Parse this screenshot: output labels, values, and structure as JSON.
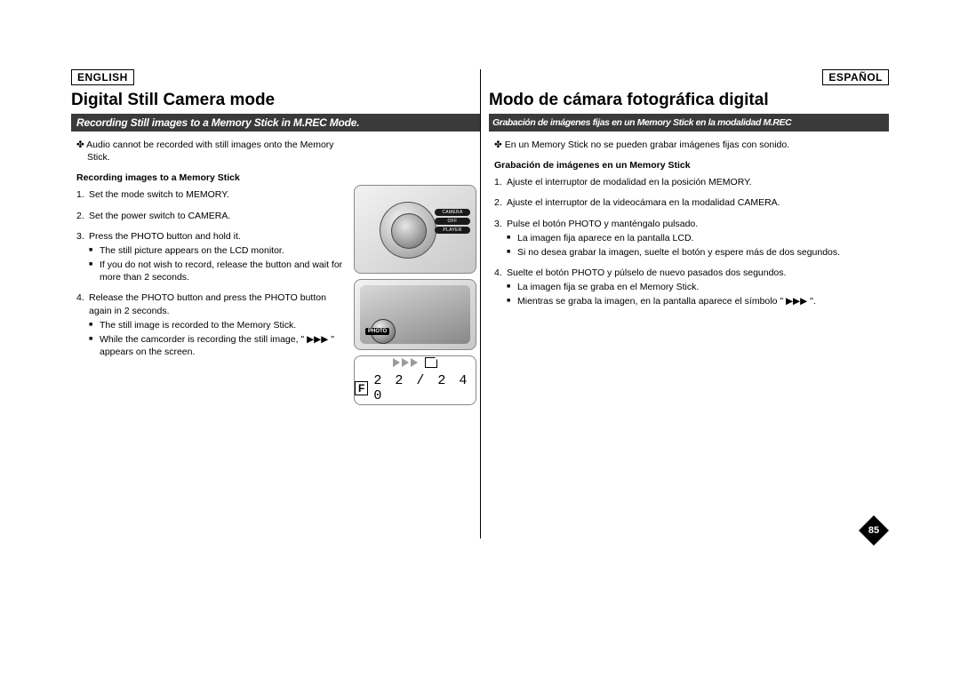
{
  "lang": {
    "left": "ENGLISH",
    "right": "ESPAÑOL"
  },
  "title": {
    "left": "Digital Still Camera mode",
    "right": "Modo de cámara fotográfica digital"
  },
  "banner": {
    "left": "Recording Still images to a Memory Stick in M.REC Mode.",
    "right": "Grabación de imágenes fijas en un Memory Stick en la modalidad M.REC"
  },
  "note": {
    "left": "Audio cannot be recorded with still images onto the Memory Stick.",
    "right": "En un Memory Stick no se pueden grabar imágenes fijas con sonido."
  },
  "subhead": {
    "left": "Recording images to a Memory Stick",
    "right": "Grabación de imágenes en un Memory Stick"
  },
  "stepsLeft": [
    {
      "n": "1.",
      "t": "Set the mode switch to MEMORY."
    },
    {
      "n": "2.",
      "t": "Set the power switch to CAMERA."
    },
    {
      "n": "3.",
      "t": "Press the PHOTO button and hold it.",
      "b": [
        "The still picture appears on the LCD monitor.",
        "If you do not wish to record, release the button and wait for more than 2 seconds."
      ]
    },
    {
      "n": "4.",
      "t": "Release the PHOTO button and press the PHOTO button again in 2 seconds.",
      "b": [
        "The still image is recorded to the Memory Stick.",
        "While the camcorder is recording the still image, \" ▶▶▶ \" appears on the screen."
      ]
    }
  ],
  "stepsRight": [
    {
      "n": "1.",
      "t": "Ajuste el interruptor de modalidad en la posición MEMORY."
    },
    {
      "n": "2.",
      "t": "Ajuste el interruptor de la videocámara en la modalidad CAMERA."
    },
    {
      "n": "3.",
      "t": "Pulse el botón PHOTO y manténgalo pulsado.",
      "b": [
        "La imagen fija aparece en la pantalla LCD.",
        "Si no desea grabar la imagen, suelte el botón y espere más de dos segundos."
      ]
    },
    {
      "n": "4.",
      "t": "Suelte el botón PHOTO y púlselo de nuevo pasados dos segundos.",
      "b": [
        "La imagen fija se graba en el Memory Stick.",
        "Mientras se graba la imagen, en la pantalla aparece el símbolo \" ▶▶▶ \"."
      ]
    }
  ],
  "fig": {
    "chips": [
      "CAMERA",
      "OFF",
      "PLAYER"
    ],
    "photoLabel": "PHOTO",
    "fLabel": "F",
    "counter": "2 2 / 2 4 0"
  },
  "pageNum": "85"
}
